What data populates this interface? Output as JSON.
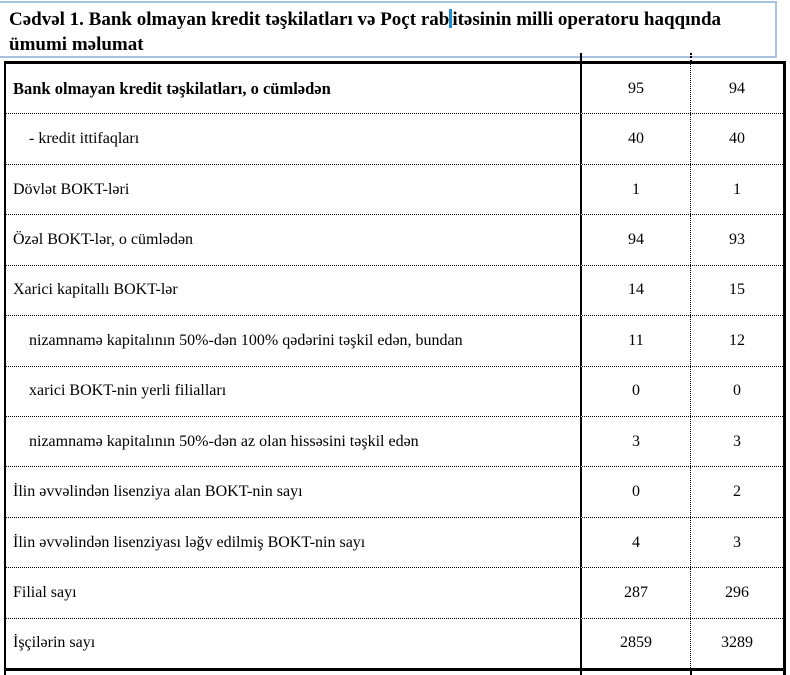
{
  "caption": {
    "full_text": "Cədvəl 1. Bank olmayan kredit təşkilatları və Poçt rabitəsinin milli operatoru haqqında ümumi məlumat",
    "line1_before_caret": "Cədvəl 1. Bank olmayan kredit təşkilatları və Poçt rab",
    "line1_after_caret": "itəsinin milli operatoru haqqında",
    "line2": "ümumi məlumat"
  },
  "table": {
    "rows": [
      {
        "label": "Bank olmayan kredit təşkilatları, o cümlədən",
        "col1": "95",
        "col2": "94"
      },
      {
        "label": "- kredit ittifaqları",
        "col1": "40",
        "col2": "40"
      },
      {
        "label": "Dövlət BOKT-ləri",
        "col1": "1",
        "col2": "1"
      },
      {
        "label": "Özəl BOKT-lər, o cümlədən",
        "col1": "94",
        "col2": "93"
      },
      {
        "label": "Xarici kapitallı BOKT-lər",
        "col1": "14",
        "col2": "15"
      },
      {
        "label": "nizamnamə kapitalının 50%-dən 100% qədərini təşkil edən, bundan",
        "col1": "11",
        "col2": "12"
      },
      {
        "label": "xarici BOKT-nin yerli filialları",
        "col1": "0",
        "col2": "0"
      },
      {
        "label": "nizamnamə kapitalının 50%-dən az olan hissəsini  təşkil edən",
        "col1": "3",
        "col2": "3"
      },
      {
        "label": "İlin əvvəlindən lisenziya alan BOKT-nin sayı",
        "col1": "0",
        "col2": "2"
      },
      {
        "label": "İlin əvvəlindən lisenziyası ləğv edilmiş BOKT-nin sayı",
        "col1": "4",
        "col2": "3"
      },
      {
        "label": "Filial sayı",
        "col1": "287",
        "col2": "296"
      },
      {
        "label": "İşçilərin sayı",
        "col1": "2859",
        "col2": "3289"
      }
    ]
  },
  "colors": {
    "selection_border": "#a6c3e0",
    "caret": "#1e8fd5",
    "table_border": "#000000",
    "background": "#ffffff",
    "text": "#000000"
  }
}
